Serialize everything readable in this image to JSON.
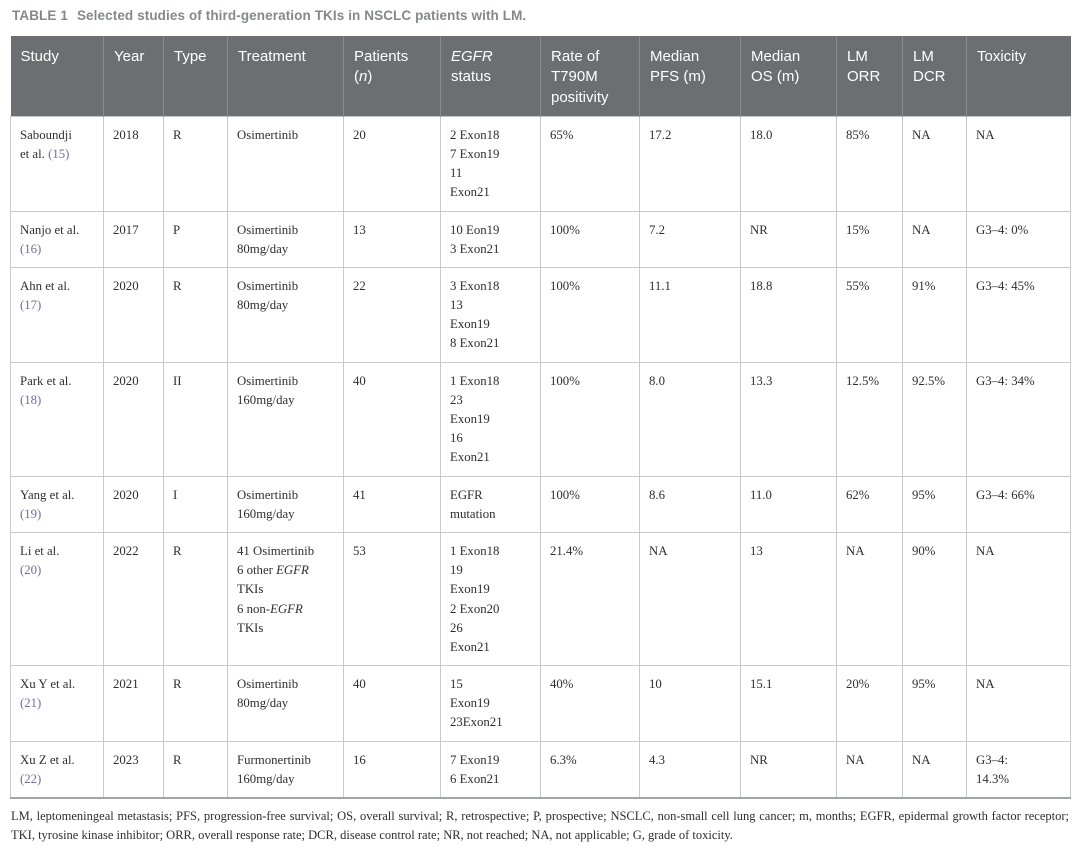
{
  "table_caption": {
    "label": "TABLE 1",
    "text": "Selected studies of third-generation TKIs in NSCLC patients with LM."
  },
  "columns": [
    {
      "label": "Study"
    },
    {
      "label": "Year"
    },
    {
      "label": "Type"
    },
    {
      "label": "Treatment"
    },
    {
      "label": "Patients\n(*n*)"
    },
    {
      "label": "*EGFR*\nstatus"
    },
    {
      "label": "Rate of\nT790M\npositivity"
    },
    {
      "label": "Median\nPFS (m)"
    },
    {
      "label": "Median\nOS (m)"
    },
    {
      "label": "LM\nORR"
    },
    {
      "label": "LM\nDCR"
    },
    {
      "label": "Toxicity"
    }
  ],
  "rows": [
    {
      "cells": [
        "Saboundji\net al. [[(15)]]",
        "2018",
        "R",
        "Osimertinib",
        "20",
        "2 Exon18\n7 Exon19\n11\nExon21",
        "65%",
        "17.2",
        "18.0",
        "85%",
        "NA",
        "NA"
      ]
    },
    {
      "cells": [
        "Nanjo et al.\n[[(16)]]",
        "2017",
        "P",
        "Osimertinib\n80mg/day",
        "13",
        "10 Eon19\n3 Exon21",
        "100%",
        "7.2",
        "NR",
        "15%",
        "NA",
        "G3–4: 0%"
      ]
    },
    {
      "cells": [
        "Ahn et al.\n[[(17)]]",
        "2020",
        "R",
        "Osimertinib\n80mg/day",
        "22",
        "3 Exon18\n13\nExon19\n8 Exon21",
        "100%",
        "11.1",
        "18.8",
        "55%",
        "91%",
        "G3–4: 45%"
      ]
    },
    {
      "cells": [
        "Park et al.\n[[(18)]]",
        "2020",
        "II",
        "Osimertinib\n160mg/day",
        "40",
        "1 Exon18\n23\nExon19\n16\nExon21",
        "100%",
        "8.0",
        "13.3",
        "12.5%",
        "92.5%",
        "G3–4: 34%"
      ]
    },
    {
      "cells": [
        "Yang et al.\n[[(19)]]",
        "2020",
        "I",
        "Osimertinib\n160mg/day",
        "41",
        "EGFR\nmutation",
        "100%",
        "8.6",
        "11.0",
        "62%",
        "95%",
        "G3–4: 66%"
      ]
    },
    {
      "cells": [
        "Li et al.\n[[(20)]]",
        "2022",
        "R",
        "41 Osimertinib\n6 other *EGFR*\nTKIs\n6 non-*EGFR*\nTKIs",
        "53",
        "1 Exon18\n19\nExon19\n2 Exon20\n26\nExon21",
        "21.4%",
        "NA",
        "13",
        "NA",
        "90%",
        "NA"
      ]
    },
    {
      "cells": [
        "Xu Y et al.\n[[(21)]]",
        "2021",
        "R",
        "Osimertinib\n80mg/day",
        "40",
        "15\nExon19\n23Exon21",
        "40%",
        "10",
        "15.1",
        "20%",
        "95%",
        "NA"
      ]
    },
    {
      "cells": [
        "Xu Z et al.\n[[(22)]]",
        "2023",
        "R",
        "Furmonertinib\n160mg/day",
        "16",
        "7 Exon19\n6 Exon21",
        "6.3%",
        "4.3",
        "NR",
        "NA",
        "NA",
        "G3–4:\n14.3%"
      ]
    }
  ],
  "footnote": "LM, leptomeningeal metastasis; PFS, progression-free survival; OS, overall survival; R, retrospective; P, prospective; NSCLC, non-small cell lung cancer; m, months; EGFR, epidermal growth factor receptor; TKI, tyrosine kinase inhibitor; ORR, overall response rate; DCR, disease control rate; NR, not reached; NA, not applicable; G, grade of toxicity.",
  "colors": {
    "header_bg": "#6b6f72",
    "header_text": "#ffffff",
    "body_border": "#c8cacb",
    "citation": "#6d6fa0",
    "caption_text": "#85888a",
    "body_text": "#2e2e2e"
  }
}
